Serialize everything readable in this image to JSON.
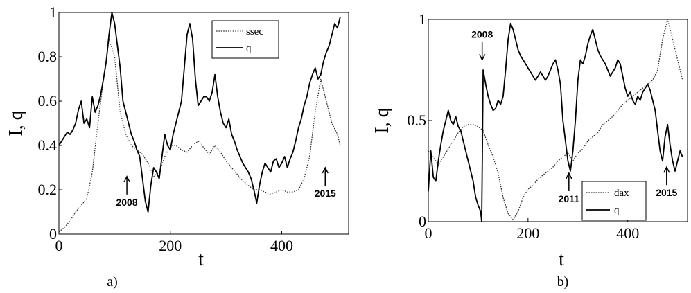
{
  "chart_data": [
    {
      "type": "line",
      "panel_label": "a)",
      "xlabel": "t",
      "ylabel": "I, q",
      "xlim": [
        0,
        520
      ],
      "ylim": [
        0,
        1
      ],
      "xticks": [
        0,
        200,
        400
      ],
      "xtick_labels": [
        "0",
        "200",
        "400"
      ],
      "yticks": [
        0,
        0.2,
        0.4,
        0.6,
        0.8,
        1
      ],
      "ytick_labels": [
        "0",
        "0.2",
        "0.4",
        "0.6",
        "0.8",
        "1"
      ],
      "legend_position": "top-right",
      "series": [
        {
          "name": "ssec",
          "style": "dotted",
          "x": [
            0,
            10,
            20,
            30,
            40,
            50,
            60,
            70,
            80,
            90,
            100,
            110,
            120,
            130,
            140,
            150,
            160,
            170,
            180,
            190,
            200,
            210,
            220,
            230,
            240,
            250,
            260,
            270,
            280,
            290,
            300,
            310,
            320,
            330,
            340,
            350,
            360,
            370,
            380,
            390,
            400,
            410,
            420,
            430,
            440,
            450,
            460,
            470,
            480,
            490,
            500,
            505
          ],
          "y": [
            0.01,
            0.03,
            0.06,
            0.1,
            0.13,
            0.16,
            0.28,
            0.5,
            0.7,
            0.88,
            0.8,
            0.55,
            0.45,
            0.4,
            0.38,
            0.36,
            0.32,
            0.26,
            0.28,
            0.35,
            0.4,
            0.4,
            0.38,
            0.37,
            0.4,
            0.42,
            0.39,
            0.36,
            0.4,
            0.37,
            0.33,
            0.3,
            0.27,
            0.24,
            0.22,
            0.2,
            0.2,
            0.19,
            0.18,
            0.19,
            0.2,
            0.19,
            0.19,
            0.2,
            0.25,
            0.35,
            0.55,
            0.7,
            0.6,
            0.5,
            0.45,
            0.4
          ]
        },
        {
          "name": "q",
          "style": "solid",
          "x": [
            0,
            5,
            10,
            15,
            20,
            25,
            30,
            35,
            40,
            45,
            50,
            55,
            60,
            65,
            70,
            75,
            80,
            85,
            90,
            95,
            100,
            105,
            110,
            115,
            120,
            125,
            130,
            135,
            140,
            145,
            150,
            155,
            160,
            165,
            170,
            175,
            180,
            185,
            190,
            195,
            200,
            205,
            210,
            215,
            220,
            225,
            230,
            235,
            240,
            245,
            250,
            255,
            260,
            265,
            270,
            275,
            280,
            285,
            290,
            295,
            300,
            305,
            310,
            315,
            320,
            325,
            330,
            335,
            340,
            345,
            350,
            355,
            360,
            365,
            370,
            375,
            380,
            385,
            390,
            395,
            400,
            405,
            410,
            415,
            420,
            425,
            430,
            435,
            440,
            445,
            450,
            455,
            460,
            465,
            470,
            475,
            480,
            485,
            490,
            495,
            500,
            505
          ],
          "y": [
            0.4,
            0.42,
            0.44,
            0.46,
            0.45,
            0.47,
            0.5,
            0.56,
            0.6,
            0.5,
            0.52,
            0.48,
            0.62,
            0.55,
            0.58,
            0.63,
            0.7,
            0.78,
            0.9,
            1.0,
            0.95,
            0.85,
            0.75,
            0.6,
            0.55,
            0.5,
            0.45,
            0.42,
            0.38,
            0.35,
            0.25,
            0.15,
            0.1,
            0.22,
            0.3,
            0.28,
            0.25,
            0.35,
            0.45,
            0.4,
            0.38,
            0.45,
            0.5,
            0.55,
            0.6,
            0.75,
            0.9,
            0.95,
            0.88,
            0.7,
            0.58,
            0.6,
            0.62,
            0.62,
            0.6,
            0.64,
            0.72,
            0.62,
            0.55,
            0.5,
            0.48,
            0.52,
            0.45,
            0.42,
            0.38,
            0.35,
            0.32,
            0.3,
            0.28,
            0.25,
            0.2,
            0.14,
            0.22,
            0.28,
            0.32,
            0.3,
            0.28,
            0.33,
            0.34,
            0.3,
            0.32,
            0.35,
            0.3,
            0.34,
            0.37,
            0.42,
            0.48,
            0.52,
            0.58,
            0.62,
            0.68,
            0.72,
            0.75,
            0.7,
            0.72,
            0.78,
            0.82,
            0.85,
            0.9,
            0.95,
            0.93,
            0.98
          ]
        }
      ],
      "annotations": [
        {
          "text": "2008",
          "x": 122,
          "y": 0.26,
          "arrow": "up"
        },
        {
          "text": "2015",
          "x": 478,
          "y": 0.3,
          "arrow": "up"
        }
      ]
    },
    {
      "type": "line",
      "panel_label": "b)",
      "xlabel": "t",
      "ylabel": "I, q",
      "xlim": [
        0,
        520
      ],
      "ylim": [
        0,
        1
      ],
      "xticks": [
        0,
        200,
        400
      ],
      "xtick_labels": [
        "0",
        "200",
        "400"
      ],
      "yticks": [
        0,
        0.5,
        1
      ],
      "ytick_labels": [
        "0",
        "0.5",
        "1"
      ],
      "legend_position": "bottom-right",
      "series": [
        {
          "name": "dax",
          "style": "dotted",
          "x": [
            0,
            10,
            20,
            30,
            40,
            50,
            60,
            70,
            80,
            90,
            100,
            110,
            120,
            130,
            140,
            150,
            160,
            170,
            180,
            190,
            200,
            210,
            220,
            230,
            240,
            250,
            260,
            270,
            280,
            290,
            300,
            310,
            320,
            330,
            340,
            350,
            360,
            370,
            380,
            390,
            400,
            410,
            420,
            430,
            440,
            450,
            460,
            470,
            480,
            490,
            500,
            510
          ],
          "y": [
            0.35,
            0.32,
            0.28,
            0.32,
            0.36,
            0.4,
            0.44,
            0.47,
            0.48,
            0.48,
            0.47,
            0.45,
            0.38,
            0.32,
            0.24,
            0.12,
            0.04,
            0.01,
            0.05,
            0.12,
            0.16,
            0.18,
            0.21,
            0.23,
            0.25,
            0.27,
            0.3,
            0.32,
            0.34,
            0.3,
            0.34,
            0.36,
            0.4,
            0.42,
            0.44,
            0.48,
            0.5,
            0.52,
            0.55,
            0.58,
            0.6,
            0.62,
            0.64,
            0.66,
            0.68,
            0.7,
            0.75,
            0.9,
            1.0,
            0.9,
            0.8,
            0.7
          ]
        },
        {
          "name": "q",
          "style": "solid",
          "x": [
            0,
            5,
            10,
            15,
            20,
            25,
            30,
            35,
            40,
            45,
            50,
            55,
            60,
            65,
            70,
            75,
            80,
            85,
            90,
            95,
            100,
            105,
            107,
            110,
            115,
            120,
            125,
            130,
            135,
            140,
            145,
            150,
            155,
            160,
            165,
            170,
            175,
            180,
            185,
            190,
            195,
            200,
            205,
            210,
            215,
            220,
            225,
            230,
            235,
            240,
            245,
            250,
            255,
            260,
            265,
            270,
            275,
            280,
            285,
            290,
            295,
            300,
            305,
            310,
            315,
            320,
            325,
            330,
            335,
            340,
            345,
            350,
            355,
            360,
            365,
            370,
            375,
            380,
            385,
            390,
            395,
            400,
            405,
            410,
            415,
            420,
            425,
            430,
            435,
            440,
            445,
            450,
            455,
            460,
            465,
            470,
            475,
            480,
            485,
            490,
            495,
            500,
            505,
            510
          ],
          "y": [
            0.15,
            0.35,
            0.22,
            0.2,
            0.3,
            0.38,
            0.45,
            0.5,
            0.55,
            0.5,
            0.48,
            0.52,
            0.47,
            0.45,
            0.4,
            0.35,
            0.3,
            0.25,
            0.2,
            0.12,
            0.08,
            0.05,
            0.0,
            0.75,
            0.68,
            0.62,
            0.58,
            0.55,
            0.56,
            0.6,
            0.58,
            0.62,
            0.75,
            0.9,
            0.98,
            0.95,
            0.9,
            0.85,
            0.82,
            0.8,
            0.78,
            0.76,
            0.74,
            0.72,
            0.7,
            0.72,
            0.74,
            0.72,
            0.7,
            0.72,
            0.75,
            0.78,
            0.8,
            0.75,
            0.68,
            0.5,
            0.4,
            0.3,
            0.25,
            0.35,
            0.5,
            0.7,
            0.8,
            0.78,
            0.82,
            0.88,
            0.92,
            0.95,
            0.9,
            0.85,
            0.82,
            0.8,
            0.78,
            0.75,
            0.72,
            0.74,
            0.76,
            0.8,
            0.78,
            0.72,
            0.66,
            0.62,
            0.64,
            0.6,
            0.58,
            0.62,
            0.6,
            0.64,
            0.66,
            0.68,
            0.65,
            0.6,
            0.55,
            0.45,
            0.35,
            0.3,
            0.42,
            0.48,
            0.38,
            0.3,
            0.25,
            0.3,
            0.35,
            0.32
          ]
        }
      ],
      "annotations": [
        {
          "text": "2008",
          "x": 108,
          "y": 0.8,
          "arrow": "down"
        },
        {
          "text": "2011",
          "x": 282,
          "y": 0.24,
          "arrow": "up"
        },
        {
          "text": "2015",
          "x": 478,
          "y": 0.27,
          "arrow": "up"
        }
      ]
    }
  ]
}
